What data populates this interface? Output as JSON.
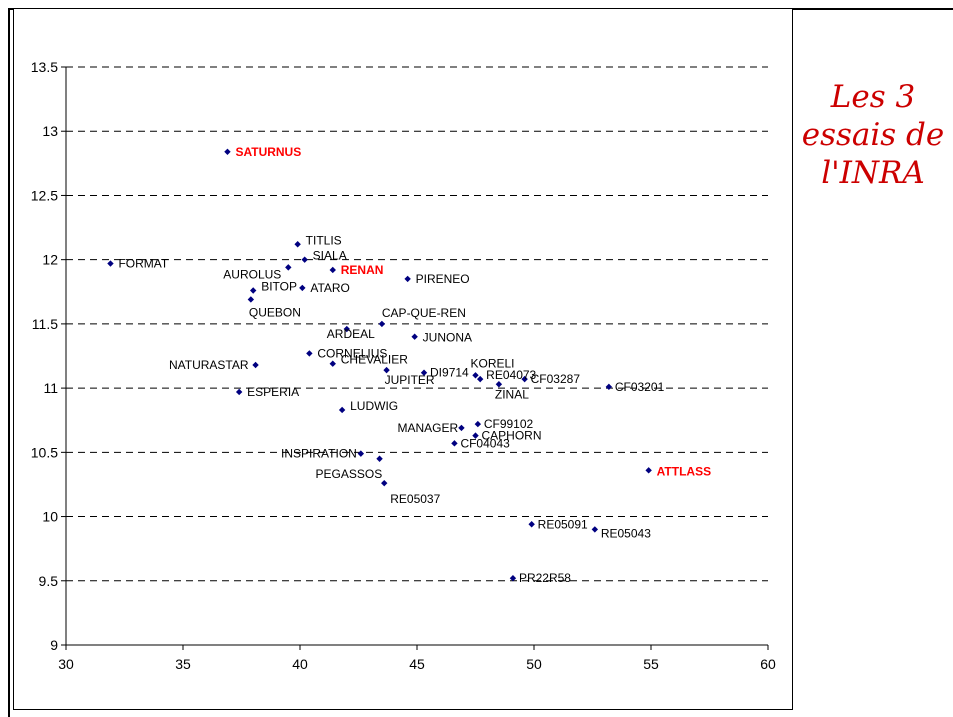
{
  "side_title": [
    "Les 3",
    "essais de",
    "l'INRA"
  ],
  "colors": {
    "marker": "#000080",
    "highlight": "#ff0000",
    "title": "#cc0000",
    "grid": "#000000"
  },
  "chart_data": {
    "type": "scatter",
    "title": "",
    "xlabel": "",
    "ylabel": "",
    "xlim": [
      30,
      60
    ],
    "ylim": [
      9,
      13.5
    ],
    "x_ticks": [
      30,
      35,
      40,
      45,
      50,
      55,
      60
    ],
    "y_ticks": [
      "9",
      "9.5",
      "10",
      "10.5",
      "11",
      "11.5",
      "12",
      "12.5",
      "13",
      "13.5"
    ],
    "grid": "horizontal-dashed",
    "legend": "none",
    "points": [
      {
        "label": "SATURNUS",
        "x": 36.9,
        "y": 12.84,
        "highlight": true
      },
      {
        "label": "TITLIS",
        "x": 39.9,
        "y": 12.12,
        "highlight": false
      },
      {
        "label": "SIALA",
        "x": 40.2,
        "y": 12.0,
        "highlight": false
      },
      {
        "label": "FORMAT",
        "x": 31.9,
        "y": 11.97,
        "highlight": false
      },
      {
        "label": "AUROLUS",
        "x": 39.5,
        "y": 11.94,
        "highlight": false
      },
      {
        "label": "RENAN",
        "x": 41.4,
        "y": 11.92,
        "highlight": true
      },
      {
        "label": "PIRENEO",
        "x": 44.6,
        "y": 11.85,
        "highlight": false
      },
      {
        "label": "BITOP",
        "x": 38.0,
        "y": 11.76,
        "highlight": false
      },
      {
        "label": "ATARO",
        "x": 40.1,
        "y": 11.78,
        "highlight": false
      },
      {
        "label": "QUEBON",
        "x": 37.9,
        "y": 11.69,
        "highlight": false
      },
      {
        "label": "CAP-QUE-REN",
        "x": 43.5,
        "y": 11.5,
        "highlight": false
      },
      {
        "label": "ARDEAL",
        "x": 42.0,
        "y": 11.46,
        "highlight": false
      },
      {
        "label": "JUNONA",
        "x": 44.9,
        "y": 11.4,
        "highlight": false
      },
      {
        "label": "CORNELIUS",
        "x": 40.4,
        "y": 11.27,
        "highlight": false
      },
      {
        "label": "NATURASTAR",
        "x": 38.1,
        "y": 11.18,
        "highlight": false
      },
      {
        "label": "CHEVALIER",
        "x": 41.4,
        "y": 11.19,
        "highlight": false
      },
      {
        "label": "KORELI",
        "x": 47.5,
        "y": 11.1,
        "highlight": false
      },
      {
        "label": "DI9714",
        "x": 45.3,
        "y": 11.12,
        "highlight": false
      },
      {
        "label": "RE04073",
        "x": 47.7,
        "y": 11.07,
        "highlight": false
      },
      {
        "label": "JUPITER",
        "x": 43.7,
        "y": 11.14,
        "highlight": false
      },
      {
        "label": "CF03287",
        "x": 49.6,
        "y": 11.07,
        "highlight": false
      },
      {
        "label": "ZINAL",
        "x": 48.5,
        "y": 11.03,
        "highlight": false
      },
      {
        "label": "CF03201",
        "x": 53.2,
        "y": 11.01,
        "highlight": false
      },
      {
        "label": "ESPERIA",
        "x": 37.4,
        "y": 10.97,
        "highlight": false
      },
      {
        "label": "LUDWIG",
        "x": 41.8,
        "y": 10.83,
        "highlight": false
      },
      {
        "label": "MANAGER",
        "x": 46.9,
        "y": 10.69,
        "highlight": false
      },
      {
        "label": "CF99102",
        "x": 47.6,
        "y": 10.72,
        "highlight": false
      },
      {
        "label": "CAPHORN",
        "x": 47.5,
        "y": 10.63,
        "highlight": false
      },
      {
        "label": "CF04043",
        "x": 46.6,
        "y": 10.57,
        "highlight": false
      },
      {
        "label": "INSPIRATION",
        "x": 42.6,
        "y": 10.49,
        "highlight": false
      },
      {
        "label": "PEGASSOS",
        "x": 43.4,
        "y": 10.45,
        "highlight": false
      },
      {
        "label": "ATTLASS",
        "x": 54.9,
        "y": 10.36,
        "highlight": true
      },
      {
        "label": "RE05037",
        "x": 43.6,
        "y": 10.26,
        "highlight": false
      },
      {
        "label": "RE05091",
        "x": 49.9,
        "y": 9.94,
        "highlight": false
      },
      {
        "label": "RE05043",
        "x": 52.6,
        "y": 9.9,
        "highlight": false
      },
      {
        "label": "PR22R58",
        "x": 49.1,
        "y": 9.52,
        "highlight": false
      }
    ]
  }
}
